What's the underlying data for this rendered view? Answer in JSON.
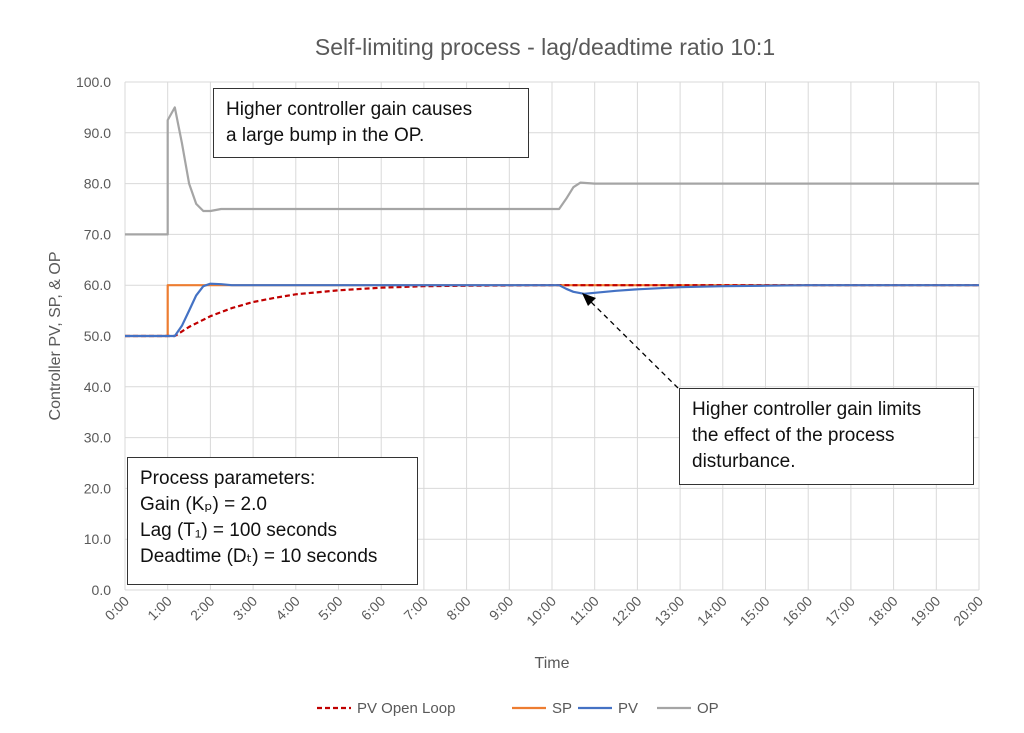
{
  "chart_data": {
    "type": "line",
    "title": "Self-limiting process - lag/deadtime ratio 10:1",
    "xlabel": "Time",
    "ylabel": "Controller PV, SP, & OP",
    "ylim": [
      0,
      100
    ],
    "xlim": [
      "0:00",
      "20:00"
    ],
    "yticks": [
      "0.0",
      "10.0",
      "20.0",
      "30.0",
      "40.0",
      "50.0",
      "60.0",
      "70.0",
      "80.0",
      "90.0",
      "100.0"
    ],
    "xticks": [
      "0:00",
      "1:00",
      "2:00",
      "3:00",
      "4:00",
      "5:00",
      "6:00",
      "7:00",
      "8:00",
      "9:00",
      "10:00",
      "11:00",
      "12:00",
      "13:00",
      "14:00",
      "15:00",
      "16:00",
      "17:00",
      "18:00",
      "19:00",
      "20:00"
    ],
    "grid": true,
    "legend_position": "bottom",
    "series": [
      {
        "name": "PV Open Loop",
        "color": "#c00000",
        "dash": true,
        "points": [
          [
            "0:00",
            50
          ],
          [
            "1:10",
            50
          ],
          [
            "1:30",
            51.8
          ],
          [
            "2:00",
            53.9
          ],
          [
            "2:30",
            55.5
          ],
          [
            "3:00",
            56.7
          ],
          [
            "3:30",
            57.5
          ],
          [
            "4:00",
            58.2
          ],
          [
            "5:00",
            59.0
          ],
          [
            "6:00",
            59.5
          ],
          [
            "7:00",
            59.8
          ],
          [
            "8:00",
            59.9
          ],
          [
            "10:00",
            60
          ],
          [
            "20:00",
            60
          ]
        ]
      },
      {
        "name": "SP",
        "color": "#ed7d31",
        "dash": false,
        "points": [
          [
            "0:00",
            50
          ],
          [
            "1:00",
            50
          ],
          [
            "1:00",
            60
          ],
          [
            "20:00",
            60
          ]
        ]
      },
      {
        "name": "PV",
        "color": "#4472c4",
        "dash": false,
        "points": [
          [
            "0:00",
            50
          ],
          [
            "1:10",
            50
          ],
          [
            "1:20",
            52
          ],
          [
            "1:30",
            55
          ],
          [
            "1:40",
            58
          ],
          [
            "1:50",
            59.8
          ],
          [
            "2:00",
            60.3
          ],
          [
            "2:15",
            60.2
          ],
          [
            "2:30",
            60
          ],
          [
            "10:10",
            60
          ],
          [
            "10:20",
            59.3
          ],
          [
            "10:30",
            58.7
          ],
          [
            "10:45",
            58.3
          ],
          [
            "11:00",
            58.5
          ],
          [
            "11:30",
            58.9
          ],
          [
            "12:00",
            59.2
          ],
          [
            "13:00",
            59.6
          ],
          [
            "14:00",
            59.8
          ],
          [
            "15:00",
            59.9
          ],
          [
            "16:00",
            60
          ],
          [
            "20:00",
            60
          ]
        ]
      },
      {
        "name": "OP",
        "color": "#a5a5a5",
        "dash": false,
        "points": [
          [
            "0:00",
            70
          ],
          [
            "1:00",
            70
          ],
          [
            "1:00",
            92.5
          ],
          [
            "1:10",
            95
          ],
          [
            "1:20",
            88
          ],
          [
            "1:30",
            80
          ],
          [
            "1:40",
            76
          ],
          [
            "1:50",
            74.6
          ],
          [
            "2:00",
            74.6
          ],
          [
            "2:15",
            75
          ],
          [
            "10:10",
            75
          ],
          [
            "10:20",
            77
          ],
          [
            "10:30",
            79.3
          ],
          [
            "10:40",
            80.2
          ],
          [
            "10:50",
            80.1
          ],
          [
            "11:00",
            80
          ],
          [
            "20:00",
            80
          ]
        ]
      }
    ],
    "annotations": {
      "op_bump": [
        "Higher controller gain causes",
        "a large bump in the OP."
      ],
      "disturbance": [
        "Higher controller gain limits",
        "the effect of the process",
        "disturbance."
      ],
      "params": [
        "Process parameters:",
        "Gain (Kₚ) = 2.0",
        "Lag (T₁) = 100 seconds",
        "Deadtime (Dₜ) = 10 seconds"
      ]
    }
  }
}
